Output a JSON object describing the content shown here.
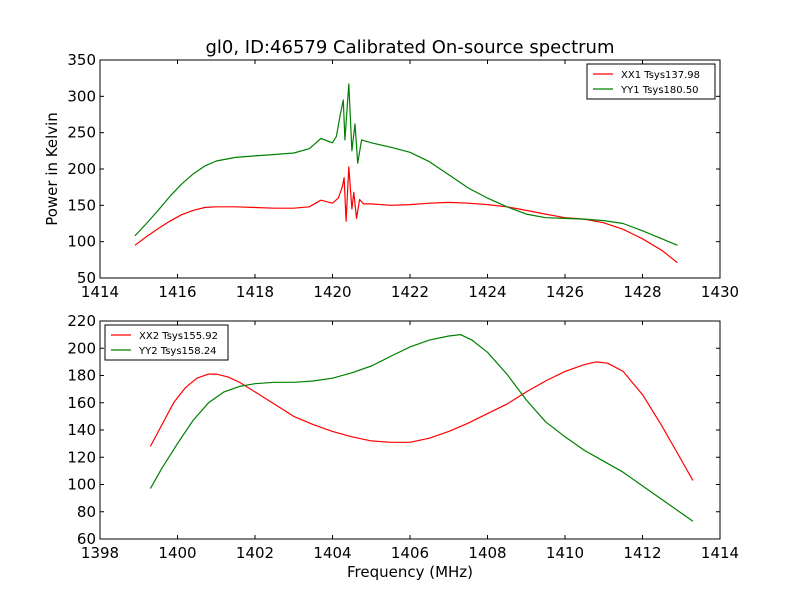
{
  "chart_data": [
    {
      "type": "line",
      "title": "gl0, ID:46579 Calibrated On-source spectrum",
      "xlabel": "",
      "ylabel": "Power in Kelvin",
      "xlim": [
        1414,
        1430
      ],
      "ylim": [
        50,
        350
      ],
      "xticks": [
        1414,
        1416,
        1418,
        1420,
        1422,
        1424,
        1426,
        1428,
        1430
      ],
      "yticks": [
        50,
        100,
        150,
        200,
        250,
        300,
        350
      ],
      "legend_position": "top-right",
      "series": [
        {
          "name": "XX1 Tsys137.98",
          "color": "#ff0000",
          "x": [
            1414.9,
            1415.2,
            1415.5,
            1415.8,
            1416.1,
            1416.4,
            1416.7,
            1417.0,
            1417.5,
            1418.0,
            1418.5,
            1419.0,
            1419.4,
            1419.7,
            1420.0,
            1420.15,
            1420.25,
            1420.3,
            1420.35,
            1420.42,
            1420.5,
            1420.55,
            1420.62,
            1420.7,
            1420.8,
            1421.0,
            1421.5,
            1422.0,
            1422.5,
            1423.0,
            1423.5,
            1424.0,
            1424.5,
            1425.0,
            1425.5,
            1426.0,
            1426.5,
            1427.0,
            1427.5,
            1428.0,
            1428.5,
            1428.9
          ],
          "y": [
            95,
            107,
            118,
            128,
            137,
            143,
            147,
            148,
            148,
            147,
            146,
            146,
            148,
            157,
            153,
            160,
            175,
            188,
            128,
            203,
            145,
            168,
            132,
            158,
            152,
            152,
            150,
            151,
            153,
            154,
            153,
            151,
            148,
            143,
            138,
            133,
            131,
            126,
            117,
            104,
            88,
            71
          ]
        },
        {
          "name": "YY1 Tsys180.50",
          "color": "#008000",
          "x": [
            1414.9,
            1415.2,
            1415.5,
            1415.8,
            1416.1,
            1416.4,
            1416.7,
            1417.0,
            1417.5,
            1418.0,
            1418.5,
            1419.0,
            1419.4,
            1419.7,
            1420.0,
            1420.1,
            1420.2,
            1420.28,
            1420.32,
            1420.42,
            1420.5,
            1420.58,
            1420.65,
            1420.75,
            1421.0,
            1421.5,
            1422.0,
            1422.5,
            1423.0,
            1423.5,
            1424.0,
            1424.5,
            1425.0,
            1425.5,
            1426.0,
            1426.5,
            1427.0,
            1427.5,
            1428.0,
            1428.5,
            1428.9
          ],
          "y": [
            108,
            125,
            143,
            162,
            179,
            193,
            204,
            211,
            216,
            218,
            220,
            222,
            228,
            242,
            236,
            245,
            275,
            295,
            240,
            317,
            225,
            262,
            208,
            240,
            236,
            230,
            223,
            210,
            192,
            174,
            160,
            148,
            138,
            133,
            132,
            131,
            129,
            125,
            115,
            104,
            95
          ]
        }
      ]
    },
    {
      "type": "line",
      "title": "",
      "xlabel": "Frequency (MHz)",
      "ylabel": "",
      "xlim": [
        1398,
        1414
      ],
      "ylim": [
        60,
        220
      ],
      "xticks": [
        1398,
        1400,
        1402,
        1404,
        1406,
        1408,
        1410,
        1412,
        1414
      ],
      "yticks": [
        60,
        80,
        100,
        120,
        140,
        160,
        180,
        200,
        220
      ],
      "legend_position": "top-left",
      "series": [
        {
          "name": "XX2 Tsys155.92",
          "color": "#ff0000",
          "x": [
            1399.3,
            1399.6,
            1399.9,
            1400.2,
            1400.5,
            1400.8,
            1401.0,
            1401.3,
            1401.6,
            1402.0,
            1402.5,
            1403.0,
            1403.5,
            1404.0,
            1404.5,
            1405.0,
            1405.5,
            1406.0,
            1406.5,
            1407.0,
            1407.5,
            1408.0,
            1408.5,
            1409.0,
            1409.5,
            1410.0,
            1410.5,
            1410.8,
            1411.1,
            1411.5,
            1412.0,
            1412.5,
            1413.0,
            1413.3
          ],
          "y": [
            128,
            144,
            160,
            171,
            178,
            181,
            181,
            179,
            175,
            168,
            159,
            150,
            144,
            139,
            135,
            132,
            131,
            131,
            134,
            139,
            145,
            152,
            159,
            168,
            176,
            183,
            188,
            190,
            189,
            183,
            166,
            143,
            118,
            103
          ]
        },
        {
          "name": "YY2 Tsys158.24",
          "color": "#008000",
          "x": [
            1399.3,
            1399.6,
            1400.0,
            1400.4,
            1400.8,
            1401.2,
            1401.6,
            1402.0,
            1402.5,
            1403.0,
            1403.5,
            1404.0,
            1404.5,
            1405.0,
            1405.5,
            1406.0,
            1406.5,
            1407.0,
            1407.3,
            1407.6,
            1408.0,
            1408.5,
            1409.0,
            1409.5,
            1410.0,
            1410.5,
            1411.0,
            1411.5,
            1412.0,
            1412.5,
            1413.0,
            1413.3
          ],
          "y": [
            97,
            112,
            130,
            147,
            160,
            168,
            172,
            174,
            175,
            175,
            176,
            178,
            182,
            187,
            194,
            201,
            206,
            209,
            210,
            206,
            197,
            181,
            162,
            146,
            135,
            125,
            117,
            109,
            99,
            89,
            79,
            73
          ]
        }
      ]
    }
  ]
}
